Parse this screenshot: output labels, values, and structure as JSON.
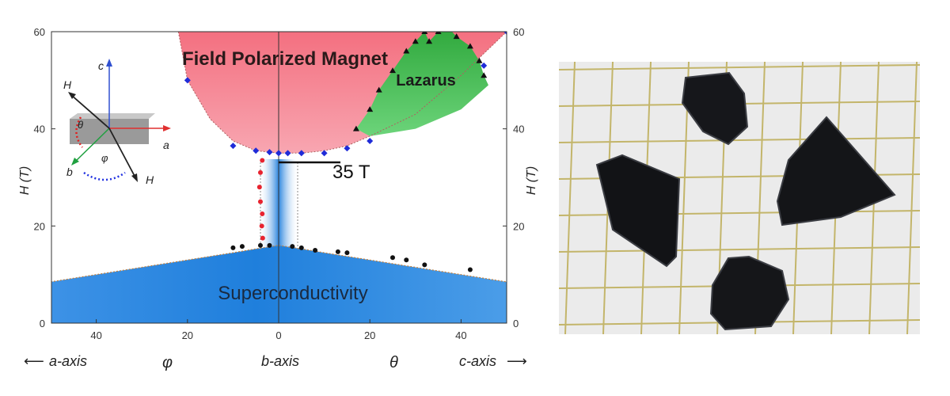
{
  "chart_data": {
    "type": "area",
    "title": "",
    "ylabel": "H (T)",
    "ylim": [
      0,
      60
    ],
    "x_tick_labels": [
      "40",
      "20",
      "0",
      "20",
      "40"
    ],
    "y_tick_labels": [
      "0",
      "20",
      "40",
      "60"
    ],
    "x_axis_labels": {
      "left_axis": "a-axis",
      "left_angle": "φ",
      "center_axis": "b-axis",
      "right_angle": "θ",
      "right_axis": "c-axis"
    },
    "regions": [
      {
        "name": "Field Polarized Magnet",
        "color": "#f4687a"
      },
      {
        "name": "Lazarus",
        "color": "#3fb34a"
      },
      {
        "name": "Superconductivity",
        "color": "#2f8de4"
      }
    ],
    "annotations": [
      "35 T"
    ],
    "superconducting_boundary": {
      "x": [
        -50,
        -40,
        -30,
        -20,
        -10,
        -5,
        0,
        5,
        10,
        20,
        30,
        40,
        50
      ],
      "y": [
        8.5,
        10,
        11.5,
        13,
        14.5,
        15.3,
        16,
        15.3,
        14.5,
        13,
        11.5,
        10,
        8.5
      ]
    },
    "polarized_boundary": {
      "x": [
        -22,
        -20,
        -15,
        -10,
        -5,
        0,
        5,
        10,
        15,
        20,
        30,
        40,
        50
      ],
      "y": [
        60,
        50,
        42,
        37.5,
        35.5,
        35,
        35,
        35.5,
        36.5,
        38.5,
        43,
        51,
        60
      ]
    },
    "series": [
      {
        "name": "",
        "color": "#1f2bd8",
        "marker": "diamond",
        "x": [
          -20,
          -10,
          -5,
          -2,
          0,
          2,
          5,
          10,
          15,
          20,
          45,
          50
        ],
        "y": [
          50,
          36.5,
          35.5,
          35.2,
          35,
          35,
          35,
          35,
          36,
          37.5,
          53,
          60
        ]
      },
      {
        "name": "",
        "color": "#111111",
        "marker": "circle",
        "x": [
          -10,
          -8,
          -4,
          -2,
          3,
          5,
          8,
          13,
          15,
          25,
          28,
          32,
          42
        ],
        "y": [
          15.5,
          15.8,
          16,
          16,
          15.8,
          15.5,
          15,
          14.7,
          14.5,
          13.5,
          13,
          12,
          11
        ]
      },
      {
        "name": "",
        "color": "#111111",
        "marker": "triangle",
        "x": [
          17,
          20,
          22,
          25,
          28,
          30,
          32,
          33,
          35,
          37,
          39,
          42,
          44,
          45
        ],
        "y": [
          40,
          44,
          48,
          52,
          56,
          58,
          60,
          58,
          60,
          61,
          59,
          57,
          54,
          51
        ]
      },
      {
        "name": "",
        "color": "#e8232f",
        "marker": "circle",
        "x": [
          -3.5,
          -3.7,
          -3.6,
          -4,
          -4.2,
          -4,
          -3.6
        ],
        "y": [
          17.5,
          20,
          22.5,
          25,
          28,
          31,
          33.5
        ]
      }
    ]
  },
  "inset": {
    "labels": {
      "c": "c",
      "h_upper": "H",
      "h_lower": "H",
      "a": "a",
      "b": "b",
      "theta": "θ",
      "phi": "φ"
    }
  },
  "photo": {
    "subject": "black crystals on millimeter grid paper"
  }
}
